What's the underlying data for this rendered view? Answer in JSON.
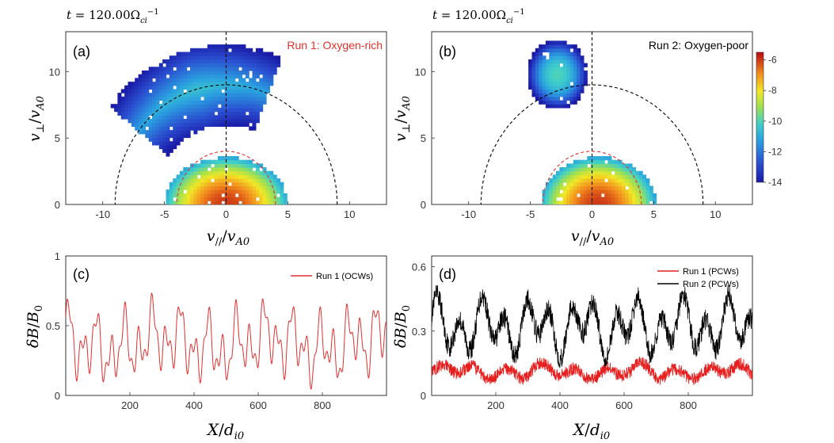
{
  "figure": {
    "time_label_a": "t = 120.00Ω_ci^−1",
    "time_label_b": "t = 120.00Ω_ci^−1"
  },
  "chart_data": [
    {
      "id": "a",
      "type": "heatmap",
      "panel_label": "(a)",
      "title": "Run 1: Oxygen-rich",
      "title_color": "#e8302a",
      "xlabel": "v_// / v_A0",
      "ylabel": "v_⊥ / v_A0",
      "xlim": [
        -13,
        13
      ],
      "ylim": [
        0,
        13
      ],
      "xticks": [
        -10,
        -5,
        0,
        5,
        10
      ],
      "yticks": [
        0,
        5,
        10
      ],
      "circles": [
        {
          "radius": 9,
          "color": "#000000",
          "style": "dashed"
        },
        {
          "radius": 4,
          "color": "#e03030",
          "style": "dashed"
        }
      ],
      "vline_x": 0,
      "blobs": [
        {
          "component": "core",
          "cx": 0,
          "cy": 0,
          "sx": 2.8,
          "sy": 2.0,
          "peak": -6
        },
        {
          "component": "upper arc",
          "center": [
            0,
            0
          ],
          "radius": 9,
          "angle_range_deg": [
            68,
            142
          ],
          "peak": -10.5
        }
      ]
    },
    {
      "id": "b",
      "type": "heatmap",
      "panel_label": "(b)",
      "title": "Run 2: Oxygen-poor",
      "title_color": "#000000",
      "xlabel": "v_// / v_A0",
      "ylabel": "v_⊥ / v_A0",
      "xlim": [
        -13,
        13
      ],
      "ylim": [
        0,
        13
      ],
      "xticks": [
        -10,
        -5,
        0,
        5,
        10
      ],
      "yticks": [
        0,
        5,
        10
      ],
      "circles": [
        {
          "radius": 9,
          "color": "#000000",
          "style": "dashed"
        },
        {
          "radius": 4,
          "color": "#e03030",
          "style": "dashed"
        }
      ],
      "vline_x": 0,
      "blobs": [
        {
          "component": "core",
          "cx": 0.5,
          "cy": 0,
          "sx": 2.6,
          "sy": 2.0,
          "peak": -6
        },
        {
          "component": "upper cloud",
          "cx": -2.8,
          "cy": 9.8,
          "sx": 1.5,
          "sy": 1.6,
          "peak": -10
        }
      ],
      "colorbar": {
        "min": -14,
        "max": -5.5,
        "ticks": [
          -6,
          -8,
          -10,
          -12,
          -14
        ]
      }
    },
    {
      "id": "c",
      "type": "line",
      "panel_label": "(c)",
      "xlabel": "X / d_i0",
      "ylabel": "δB / B_0",
      "xlim": [
        0,
        1000
      ],
      "ylim": [
        0,
        1
      ],
      "xticks": [
        200,
        400,
        600,
        800
      ],
      "yticks": [
        0,
        0.5,
        1
      ],
      "legend_position": "top-right",
      "series": [
        {
          "name": "Run 1 (OCWs)",
          "color": "#e03030",
          "mean": 0.37,
          "range": [
            0.03,
            0.76
          ]
        }
      ]
    },
    {
      "id": "d",
      "type": "line",
      "panel_label": "(d)",
      "xlabel": "X / d_i0",
      "ylabel": "δB / B_0",
      "xlim": [
        0,
        1000
      ],
      "ylim": [
        0,
        0.65
      ],
      "xticks": [
        200,
        400,
        600,
        800
      ],
      "yticks": [
        0,
        0.3,
        0.6
      ],
      "legend_position": "top-right",
      "series": [
        {
          "name": "Run 1 (PCWs)",
          "color": "#e61e1e",
          "mean": 0.1,
          "range": [
            0.04,
            0.22
          ]
        },
        {
          "name": "Run 2 (PCWs)",
          "color": "#000000",
          "mean": 0.32,
          "range": [
            0.13,
            0.56
          ]
        }
      ]
    }
  ]
}
